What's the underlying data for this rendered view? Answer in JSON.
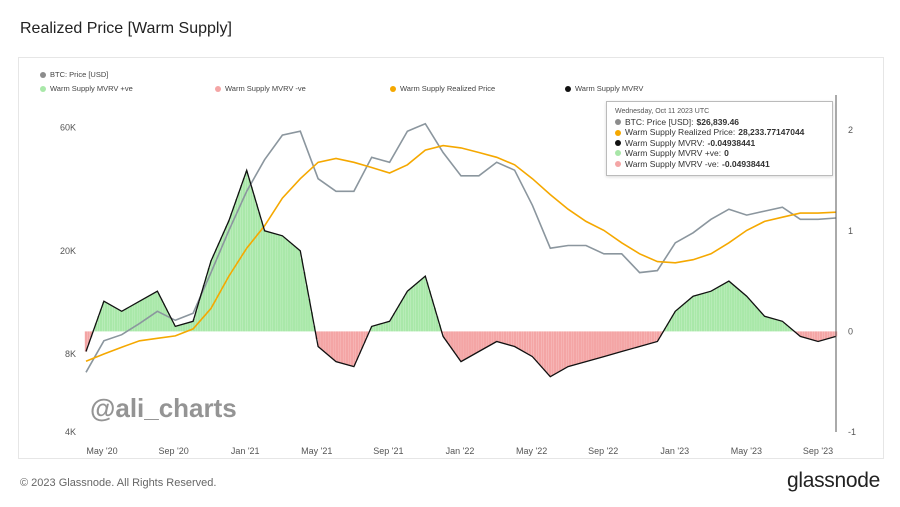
{
  "title": "Realized Price [Warm Supply]",
  "footer": {
    "copyright": "© 2023 Glassnode. All Rights Reserved.",
    "brand": "glassnode"
  },
  "watermark": "@ali_charts",
  "legend": {
    "btc_price": "BTC: Price [USD]",
    "mvrv_pos": "Warm Supply MVRV +ve",
    "mvrv_neg": "Warm Supply MVRV -ve",
    "realized": "Warm Supply Realized Price",
    "mvrv": "Warm Supply MVRV"
  },
  "tooltip": {
    "date": "Wednesday, Oct 11 2023 UTC",
    "rows": [
      {
        "label": "BTC: Price [USD]:",
        "value": "$26,839.46",
        "color": "#8c8c8c"
      },
      {
        "label": "Warm Supply Realized Price:",
        "value": "28,233.77147044",
        "color": "#f5a800"
      },
      {
        "label": "Warm Supply MVRV:",
        "value": "-0.04938441",
        "color": "#111111"
      },
      {
        "label": "Warm Supply MVRV +ve:",
        "value": "0",
        "color": "#a8e6a8"
      },
      {
        "label": "Warm Supply MVRV -ve:",
        "value": "-0.04938441",
        "color": "#f4a6a6"
      }
    ]
  },
  "colors": {
    "price": "#8b969e",
    "realized": "#f5a800",
    "mvrv": "#111111",
    "pos": "#a9e8a9",
    "neg": "#f4a5a5"
  },
  "chart_data": {
    "type": "line",
    "title": "Realized Price [Warm Supply]",
    "x_ticks": [
      "May '20",
      "Sep '20",
      "Jan '21",
      "May '21",
      "Sep '21",
      "Jan '22",
      "May '22",
      "Sep '22",
      "Jan '23",
      "May '23",
      "Sep '23"
    ],
    "y_left_ticks": [
      "4K",
      "8K",
      "20K",
      "60K"
    ],
    "y_left_scale": "log",
    "y_left_ylim": [
      4000,
      80000
    ],
    "y_right_ticks": [
      "-1",
      "0",
      "1",
      "2"
    ],
    "y_right_ylim": [
      -1,
      2.35
    ],
    "series": [
      {
        "name": "BTC: Price [USD]",
        "x": [
          "2020-04",
          "2020-05",
          "2020-06",
          "2020-07",
          "2020-08",
          "2020-09",
          "2020-10",
          "2020-11",
          "2020-12",
          "2021-01",
          "2021-02",
          "2021-03",
          "2021-04",
          "2021-05",
          "2021-06",
          "2021-07",
          "2021-08",
          "2021-09",
          "2021-10",
          "2021-11",
          "2021-12",
          "2022-01",
          "2022-02",
          "2022-03",
          "2022-04",
          "2022-05",
          "2022-06",
          "2022-07",
          "2022-08",
          "2022-09",
          "2022-10",
          "2022-11",
          "2022-12",
          "2023-01",
          "2023-02",
          "2023-03",
          "2023-04",
          "2023-05",
          "2023-06",
          "2023-07",
          "2023-08",
          "2023-09",
          "2023-10"
        ],
        "values": [
          6800,
          9000,
          9500,
          10500,
          11700,
          10800,
          11500,
          16500,
          24000,
          34000,
          45000,
          56000,
          58000,
          38000,
          34000,
          34000,
          46000,
          44000,
          58000,
          62000,
          48000,
          39000,
          39000,
          44000,
          41000,
          30000,
          20500,
          21000,
          21000,
          19500,
          19500,
          16500,
          16800,
          21500,
          23500,
          26500,
          29000,
          27500,
          28500,
          29500,
          26500,
          26500,
          26800
        ]
      },
      {
        "name": "Warm Supply Realized Price",
        "x": [
          "2020-04",
          "2020-05",
          "2020-06",
          "2020-07",
          "2020-08",
          "2020-09",
          "2020-10",
          "2020-11",
          "2020-12",
          "2021-01",
          "2021-02",
          "2021-03",
          "2021-04",
          "2021-05",
          "2021-06",
          "2021-07",
          "2021-08",
          "2021-09",
          "2021-10",
          "2021-11",
          "2021-12",
          "2022-01",
          "2022-02",
          "2022-03",
          "2022-04",
          "2022-05",
          "2022-06",
          "2022-07",
          "2022-08",
          "2022-09",
          "2022-10",
          "2022-11",
          "2022-12",
          "2023-01",
          "2023-02",
          "2023-03",
          "2023-04",
          "2023-05",
          "2023-06",
          "2023-07",
          "2023-08",
          "2023-09",
          "2023-10"
        ],
        "values": [
          7500,
          8000,
          8500,
          9000,
          9200,
          9400,
          10000,
          12000,
          16000,
          20500,
          25000,
          32000,
          38000,
          44000,
          45500,
          44000,
          42000,
          40000,
          43000,
          49000,
          51000,
          50000,
          48000,
          46000,
          43000,
          38000,
          33000,
          29000,
          26000,
          24000,
          21500,
          19500,
          18200,
          18000,
          18500,
          19500,
          21500,
          24000,
          26000,
          27000,
          28000,
          28000,
          28234
        ]
      },
      {
        "name": "Warm Supply MVRV",
        "x": [
          "2020-04",
          "2020-05",
          "2020-06",
          "2020-07",
          "2020-08",
          "2020-09",
          "2020-10",
          "2020-11",
          "2020-12",
          "2021-01",
          "2021-02",
          "2021-03",
          "2021-04",
          "2021-05",
          "2021-06",
          "2021-07",
          "2021-08",
          "2021-09",
          "2021-10",
          "2021-11",
          "2021-12",
          "2022-01",
          "2022-02",
          "2022-03",
          "2022-04",
          "2022-05",
          "2022-06",
          "2022-07",
          "2022-08",
          "2022-09",
          "2022-10",
          "2022-11",
          "2022-12",
          "2023-01",
          "2023-02",
          "2023-03",
          "2023-04",
          "2023-05",
          "2023-06",
          "2023-07",
          "2023-08",
          "2023-09",
          "2023-10"
        ],
        "values": [
          -0.2,
          0.3,
          0.2,
          0.3,
          0.4,
          0.05,
          0.1,
          0.7,
          1.1,
          1.6,
          1.0,
          0.95,
          0.8,
          -0.15,
          -0.3,
          -0.35,
          0.05,
          0.1,
          0.4,
          0.55,
          -0.05,
          -0.3,
          -0.2,
          -0.1,
          -0.15,
          -0.25,
          -0.45,
          -0.35,
          -0.3,
          -0.25,
          -0.2,
          -0.15,
          -0.1,
          0.2,
          0.35,
          0.4,
          0.5,
          0.35,
          0.15,
          0.1,
          -0.05,
          -0.1,
          -0.05
        ]
      }
    ],
    "legend": [
      "BTC: Price [USD]",
      "Warm Supply MVRV +ve",
      "Warm Supply MVRV -ve",
      "Warm Supply Realized Price",
      "Warm Supply MVRV"
    ]
  }
}
